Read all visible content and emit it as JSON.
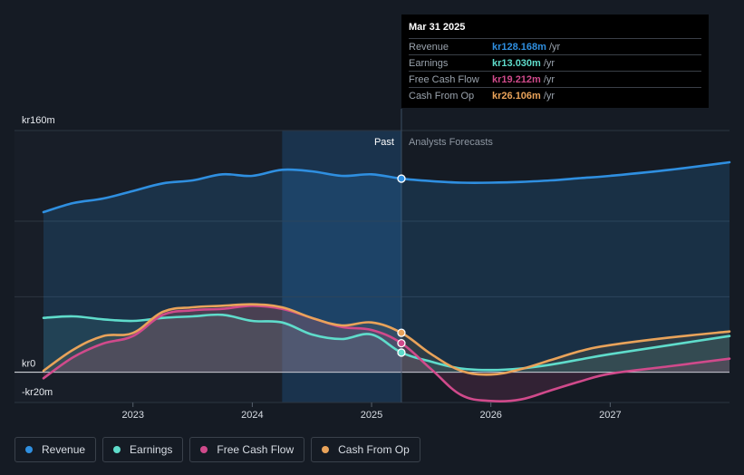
{
  "chart_data": {
    "type": "line",
    "y_unit_prefix": "kr",
    "ylim": [
      -20,
      160
    ],
    "y_tick_labels": [
      "kr160m",
      "kr0",
      "-kr20m"
    ],
    "y_ticks": [
      160,
      0,
      -20
    ],
    "x_tick_labels": [
      "2023",
      "2024",
      "2025",
      "2026",
      "2027"
    ],
    "x_ticks": [
      2023,
      2024,
      2025,
      2026,
      2027
    ],
    "xlim": [
      2022.25,
      2028.0
    ],
    "divider_x": 2025.25,
    "highlight_start": 2024.25,
    "past_label": "Past",
    "forecast_label": "Analysts Forecasts",
    "series": [
      {
        "name": "Revenue",
        "color": "#2f8fe0",
        "points": [
          [
            2022.25,
            106
          ],
          [
            2022.5,
            112
          ],
          [
            2022.75,
            115
          ],
          [
            2023.0,
            120
          ],
          [
            2023.25,
            125
          ],
          [
            2023.5,
            127
          ],
          [
            2023.75,
            131
          ],
          [
            2024.0,
            130
          ],
          [
            2024.25,
            134
          ],
          [
            2024.5,
            133
          ],
          [
            2024.75,
            130
          ],
          [
            2025.0,
            131
          ],
          [
            2025.25,
            128.168
          ],
          [
            2025.5,
            126.5
          ],
          [
            2025.75,
            125.5
          ],
          [
            2026.0,
            125.5
          ],
          [
            2026.25,
            126
          ],
          [
            2026.5,
            127
          ],
          [
            2026.75,
            128.5
          ],
          [
            2027.0,
            130
          ],
          [
            2027.5,
            134
          ],
          [
            2028.0,
            139
          ]
        ]
      },
      {
        "name": "Earnings",
        "color": "#5fdccb",
        "points": [
          [
            2022.25,
            36
          ],
          [
            2022.5,
            37
          ],
          [
            2022.75,
            35
          ],
          [
            2023.0,
            34
          ],
          [
            2023.25,
            36
          ],
          [
            2023.5,
            37
          ],
          [
            2023.75,
            38
          ],
          [
            2024.0,
            34
          ],
          [
            2024.25,
            33
          ],
          [
            2024.5,
            25
          ],
          [
            2024.75,
            22
          ],
          [
            2025.0,
            25
          ],
          [
            2025.25,
            13.03
          ],
          [
            2025.5,
            7
          ],
          [
            2025.75,
            2.5
          ],
          [
            2026.0,
            1.5
          ],
          [
            2026.25,
            2.5
          ],
          [
            2026.5,
            5
          ],
          [
            2026.75,
            8.5
          ],
          [
            2027.0,
            12
          ],
          [
            2027.5,
            18
          ],
          [
            2028.0,
            24
          ]
        ]
      },
      {
        "name": "Free Cash Flow",
        "color": "#d04a8b",
        "points": [
          [
            2022.25,
            -4
          ],
          [
            2022.5,
            10
          ],
          [
            2022.75,
            19
          ],
          [
            2023.0,
            24
          ],
          [
            2023.25,
            38
          ],
          [
            2023.5,
            41
          ],
          [
            2023.75,
            42
          ],
          [
            2024.0,
            44
          ],
          [
            2024.25,
            42
          ],
          [
            2024.5,
            36
          ],
          [
            2024.75,
            30
          ],
          [
            2025.0,
            28
          ],
          [
            2025.25,
            19.212
          ],
          [
            2025.5,
            2
          ],
          [
            2025.75,
            -15
          ],
          [
            2026.0,
            -19
          ],
          [
            2026.25,
            -18
          ],
          [
            2026.5,
            -12
          ],
          [
            2026.75,
            -6
          ],
          [
            2027.0,
            -1
          ],
          [
            2027.5,
            4
          ],
          [
            2028.0,
            9
          ]
        ]
      },
      {
        "name": "Cash From Op",
        "color": "#e9a35a",
        "points": [
          [
            2022.25,
            1
          ],
          [
            2022.5,
            15
          ],
          [
            2022.75,
            24
          ],
          [
            2023.0,
            26
          ],
          [
            2023.25,
            40
          ],
          [
            2023.5,
            43
          ],
          [
            2023.75,
            44
          ],
          [
            2024.0,
            45
          ],
          [
            2024.25,
            43
          ],
          [
            2024.5,
            36
          ],
          [
            2024.75,
            31
          ],
          [
            2025.0,
            33
          ],
          [
            2025.25,
            26.106
          ],
          [
            2025.5,
            12
          ],
          [
            2025.75,
            1
          ],
          [
            2026.0,
            -1.5
          ],
          [
            2026.25,
            2
          ],
          [
            2026.5,
            8
          ],
          [
            2026.75,
            14
          ],
          [
            2027.0,
            18
          ],
          [
            2027.5,
            23
          ],
          [
            2028.0,
            27
          ]
        ]
      }
    ]
  },
  "tooltip": {
    "date": "Mar 31 2025",
    "rows": [
      {
        "label": "Revenue",
        "value": "kr128.168m",
        "unit": "/yr",
        "color": "#2f8fe0"
      },
      {
        "label": "Earnings",
        "value": "kr13.030m",
        "unit": "/yr",
        "color": "#5fdccb"
      },
      {
        "label": "Free Cash Flow",
        "value": "kr19.212m",
        "unit": "/yr",
        "color": "#d04a8b"
      },
      {
        "label": "Cash From Op",
        "value": "kr26.106m",
        "unit": "/yr",
        "color": "#e9a35a"
      }
    ]
  },
  "legend": [
    {
      "label": "Revenue",
      "color": "#2f8fe0"
    },
    {
      "label": "Earnings",
      "color": "#5fdccb"
    },
    {
      "label": "Free Cash Flow",
      "color": "#d04a8b"
    },
    {
      "label": "Cash From Op",
      "color": "#e9a35a"
    }
  ]
}
